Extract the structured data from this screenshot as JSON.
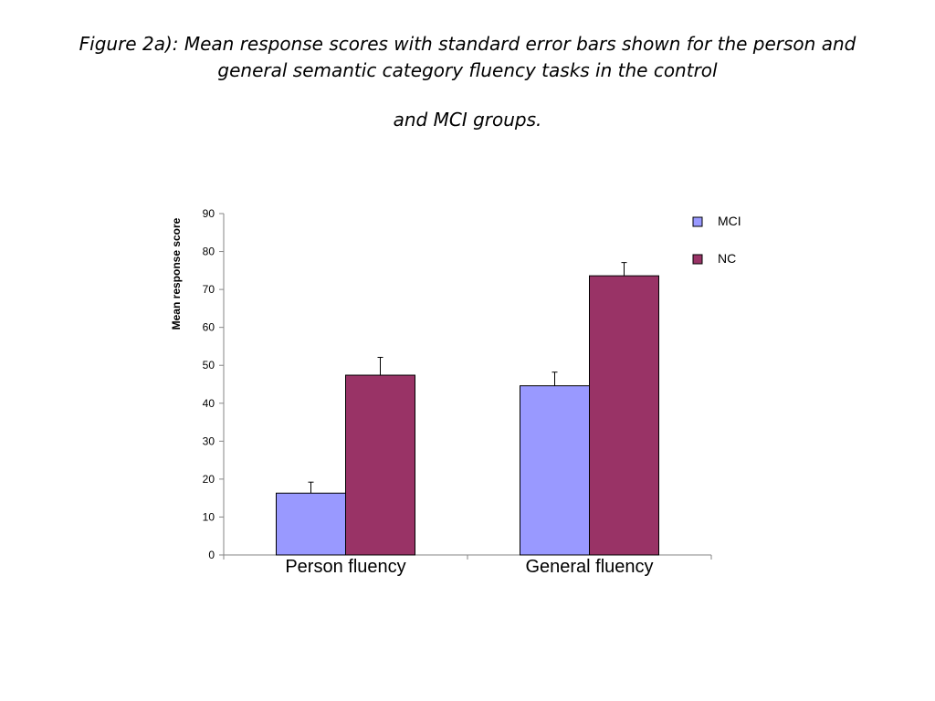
{
  "caption": {
    "line1": "Figure 2a): Mean response scores with standard error bars shown for the person and",
    "line2": "general semantic category fluency tasks in the control",
    "line3": "and MCI groups."
  },
  "chart_data": {
    "type": "bar",
    "title": "",
    "xlabel": "",
    "ylabel": "Mean response score",
    "ylim": [
      0,
      90
    ],
    "yticks": [
      0,
      10,
      20,
      30,
      40,
      50,
      60,
      70,
      80,
      90
    ],
    "categories": [
      "Person fluency",
      "General fluency"
    ],
    "series": [
      {
        "name": "MCI",
        "color": "#9999ff",
        "values": [
          16.3,
          44.6
        ],
        "errors": [
          2.9,
          3.6
        ]
      },
      {
        "name": "NC",
        "color": "#993366",
        "values": [
          47.4,
          73.6
        ],
        "errors": [
          4.7,
          3.5
        ]
      }
    ],
    "legend_position": "top-right",
    "grid": false
  }
}
